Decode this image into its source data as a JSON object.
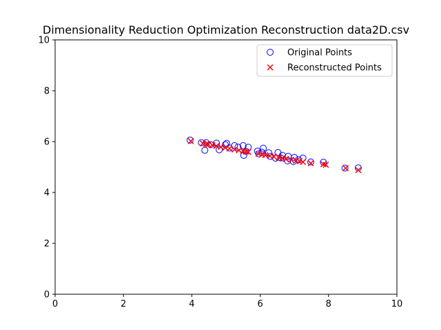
{
  "chart_data": {
    "type": "scatter",
    "title": "Dimensionality Reduction Optimization Reconstruction data2D.csv",
    "xlabel": "",
    "ylabel": "",
    "xlim": [
      0,
      10
    ],
    "ylim": [
      0,
      10
    ],
    "xticks": [
      "0",
      "2",
      "4",
      "6",
      "8",
      "10"
    ],
    "yticks": [
      "0",
      "2",
      "4",
      "6",
      "8",
      "10"
    ],
    "grid": false,
    "legend_position": "top-right",
    "series": [
      {
        "name": "Original Points",
        "marker": "open-circle",
        "color": "#0000ff",
        "points": [
          [
            3.95,
            6.06
          ],
          [
            4.28,
            5.96
          ],
          [
            4.38,
            5.66
          ],
          [
            4.42,
            5.96
          ],
          [
            4.55,
            5.88
          ],
          [
            4.72,
            5.94
          ],
          [
            4.8,
            5.68
          ],
          [
            4.98,
            5.88
          ],
          [
            5.02,
            5.93
          ],
          [
            5.1,
            5.75
          ],
          [
            5.25,
            5.84
          ],
          [
            5.35,
            5.78
          ],
          [
            5.5,
            5.84
          ],
          [
            5.52,
            5.46
          ],
          [
            5.58,
            5.62
          ],
          [
            5.65,
            5.78
          ],
          [
            5.92,
            5.63
          ],
          [
            5.96,
            5.52
          ],
          [
            6.05,
            5.58
          ],
          [
            6.09,
            5.74
          ],
          [
            6.25,
            5.56
          ],
          [
            6.3,
            5.42
          ],
          [
            6.45,
            5.35
          ],
          [
            6.52,
            5.57
          ],
          [
            6.6,
            5.36
          ],
          [
            6.65,
            5.46
          ],
          [
            6.8,
            5.24
          ],
          [
            6.82,
            5.42
          ],
          [
            6.97,
            5.22
          ],
          [
            7.0,
            5.38
          ],
          [
            7.12,
            5.29
          ],
          [
            7.25,
            5.35
          ],
          [
            7.48,
            5.2
          ],
          [
            7.85,
            5.19
          ],
          [
            8.48,
            4.96
          ],
          [
            8.87,
            4.97
          ]
        ]
      },
      {
        "name": "Reconstructed Points",
        "marker": "x",
        "color": "#ff0000",
        "points": [
          [
            3.97,
            6.02
          ],
          [
            4.32,
            5.93
          ],
          [
            4.42,
            5.9
          ],
          [
            4.48,
            5.89
          ],
          [
            4.6,
            5.86
          ],
          [
            4.72,
            5.83
          ],
          [
            4.85,
            5.79
          ],
          [
            4.98,
            5.76
          ],
          [
            5.1,
            5.73
          ],
          [
            5.25,
            5.69
          ],
          [
            5.38,
            5.66
          ],
          [
            5.5,
            5.63
          ],
          [
            5.58,
            5.61
          ],
          [
            5.65,
            5.59
          ],
          [
            5.95,
            5.52
          ],
          [
            6.05,
            5.49
          ],
          [
            6.15,
            5.47
          ],
          [
            6.28,
            5.44
          ],
          [
            6.4,
            5.41
          ],
          [
            6.55,
            5.37
          ],
          [
            6.65,
            5.35
          ],
          [
            6.75,
            5.32
          ],
          [
            6.9,
            5.29
          ],
          [
            7.05,
            5.25
          ],
          [
            7.15,
            5.23
          ],
          [
            7.25,
            5.2
          ],
          [
            7.48,
            5.15
          ],
          [
            7.85,
            5.11
          ],
          [
            7.92,
            5.09
          ],
          [
            8.5,
            4.96
          ],
          [
            8.87,
            4.88
          ]
        ]
      }
    ]
  }
}
